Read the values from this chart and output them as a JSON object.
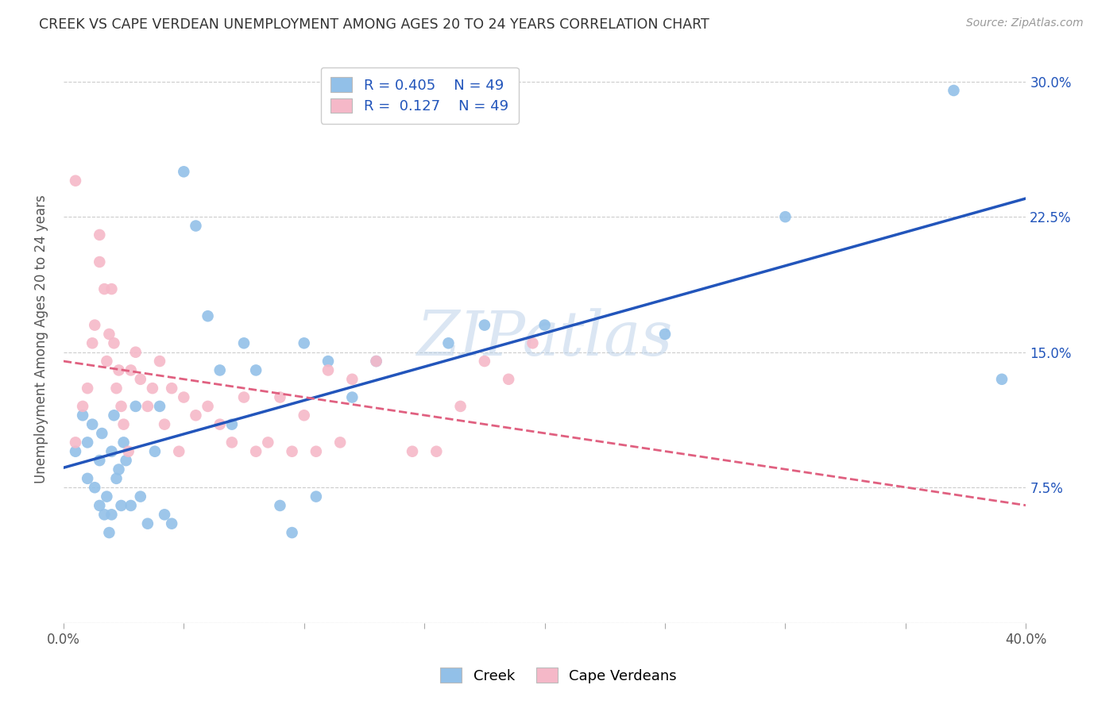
{
  "title": "CREEK VS CAPE VERDEAN UNEMPLOYMENT AMONG AGES 20 TO 24 YEARS CORRELATION CHART",
  "source": "Source: ZipAtlas.com",
  "ylabel": "Unemployment Among Ages 20 to 24 years",
  "xlim": [
    0.0,
    0.4
  ],
  "ylim": [
    0.0,
    0.315
  ],
  "ytick_positions": [
    0.0,
    0.075,
    0.15,
    0.225,
    0.3
  ],
  "yticklabels_right": [
    "",
    "7.5%",
    "15.0%",
    "22.5%",
    "30.0%"
  ],
  "xtick_positions": [
    0.0,
    0.05,
    0.1,
    0.15,
    0.2,
    0.25,
    0.3,
    0.35,
    0.4
  ],
  "R_creek": 0.405,
  "N_creek": 49,
  "R_cape": 0.127,
  "N_cape": 49,
  "creek_color": "#92c0e8",
  "cape_color": "#f5b8c8",
  "creek_line_color": "#2255bb",
  "cape_line_color": "#e06080",
  "grid_color": "#cccccc",
  "background_color": "#ffffff",
  "watermark": "ZIPatlas",
  "legend_label_creek": "Creek",
  "legend_label_cape": "Cape Verdeans",
  "creek_x": [
    0.005,
    0.008,
    0.01,
    0.01,
    0.012,
    0.013,
    0.015,
    0.015,
    0.016,
    0.017,
    0.018,
    0.019,
    0.02,
    0.02,
    0.021,
    0.022,
    0.023,
    0.024,
    0.025,
    0.026,
    0.028,
    0.03,
    0.032,
    0.035,
    0.038,
    0.04,
    0.042,
    0.045,
    0.05,
    0.055,
    0.06,
    0.065,
    0.07,
    0.075,
    0.08,
    0.09,
    0.095,
    0.1,
    0.105,
    0.11,
    0.12,
    0.13,
    0.16,
    0.175,
    0.2,
    0.25,
    0.3,
    0.37,
    0.39
  ],
  "creek_y": [
    0.095,
    0.115,
    0.08,
    0.1,
    0.11,
    0.075,
    0.065,
    0.09,
    0.105,
    0.06,
    0.07,
    0.05,
    0.06,
    0.095,
    0.115,
    0.08,
    0.085,
    0.065,
    0.1,
    0.09,
    0.065,
    0.12,
    0.07,
    0.055,
    0.095,
    0.12,
    0.06,
    0.055,
    0.25,
    0.22,
    0.17,
    0.14,
    0.11,
    0.155,
    0.14,
    0.065,
    0.05,
    0.155,
    0.07,
    0.145,
    0.125,
    0.145,
    0.155,
    0.165,
    0.165,
    0.16,
    0.225,
    0.295,
    0.135
  ],
  "cape_x": [
    0.005,
    0.008,
    0.01,
    0.012,
    0.013,
    0.015,
    0.015,
    0.017,
    0.018,
    0.019,
    0.02,
    0.021,
    0.022,
    0.023,
    0.024,
    0.025,
    0.027,
    0.028,
    0.03,
    0.032,
    0.035,
    0.037,
    0.04,
    0.042,
    0.045,
    0.048,
    0.05,
    0.055,
    0.06,
    0.065,
    0.07,
    0.075,
    0.08,
    0.085,
    0.09,
    0.095,
    0.1,
    0.105,
    0.11,
    0.115,
    0.12,
    0.13,
    0.145,
    0.155,
    0.165,
    0.175,
    0.185,
    0.195,
    0.005
  ],
  "cape_y": [
    0.1,
    0.12,
    0.13,
    0.155,
    0.165,
    0.2,
    0.215,
    0.185,
    0.145,
    0.16,
    0.185,
    0.155,
    0.13,
    0.14,
    0.12,
    0.11,
    0.095,
    0.14,
    0.15,
    0.135,
    0.12,
    0.13,
    0.145,
    0.11,
    0.13,
    0.095,
    0.125,
    0.115,
    0.12,
    0.11,
    0.1,
    0.125,
    0.095,
    0.1,
    0.125,
    0.095,
    0.115,
    0.095,
    0.14,
    0.1,
    0.135,
    0.145,
    0.095,
    0.095,
    0.12,
    0.145,
    0.135,
    0.155,
    0.245
  ]
}
